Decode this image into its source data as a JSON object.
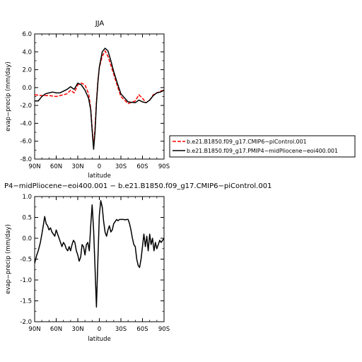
{
  "chart_data": [
    {
      "type": "line",
      "title": "JJA",
      "xlabel": "latitude",
      "ylabel": "evap−precip (mm/day)",
      "xlim": [
        -90,
        90
      ],
      "ylim": [
        -8,
        6
      ],
      "xticks": [
        {
          "v": -90,
          "label": "90N"
        },
        {
          "v": -60,
          "label": "60N"
        },
        {
          "v": -30,
          "label": "30N"
        },
        {
          "v": 0,
          "label": "0"
        },
        {
          "v": 30,
          "label": "30S"
        },
        {
          "v": 60,
          "label": "60S"
        },
        {
          "v": 90,
          "label": "90S"
        }
      ],
      "yticks": [
        {
          "v": 6,
          "label": "6.0"
        },
        {
          "v": 4,
          "label": "4.0"
        },
        {
          "v": 2,
          "label": "2.0"
        },
        {
          "v": 0,
          "label": "0.0"
        },
        {
          "v": -2,
          "label": "-2.0"
        },
        {
          "v": -4,
          "label": "-4.0"
        },
        {
          "v": -6,
          "label": "-6.0"
        },
        {
          "v": -8,
          "label": "-8.0"
        }
      ],
      "legend": "right",
      "series": [
        {
          "name": "b.e21.B1850.f09_g17.CMIP6−piControl.001",
          "color": "#ff0000",
          "dash": "dashed",
          "x": [
            -90,
            -80,
            -70,
            -60,
            -50,
            -45,
            -40,
            -35,
            -30,
            -25,
            -20,
            -15,
            -12,
            -10,
            -8,
            -6,
            -4,
            -2,
            0,
            4,
            8,
            12,
            16,
            20,
            25,
            30,
            40,
            50,
            55,
            60,
            65,
            70,
            75,
            80,
            85,
            90
          ],
          "y": [
            -0.8,
            -0.9,
            -0.9,
            -1.0,
            -0.8,
            -0.7,
            -0.3,
            -0.6,
            0.3,
            0.5,
            0.3,
            -0.7,
            -2.3,
            -4.5,
            -6.6,
            -4.5,
            -1.5,
            0.8,
            2.2,
            3.5,
            4.1,
            3.5,
            2.5,
            1.5,
            0.2,
            -1.0,
            -1.8,
            -1.5,
            -0.8,
            -1.2,
            -1.7,
            -1.4,
            -0.8,
            -0.6,
            -0.4,
            -0.3
          ]
        },
        {
          "name": "b.e21.B1850.f09_g17.PMIP4−midPliocene−eoi400.001",
          "color": "#000000",
          "dash": "solid",
          "x": [
            -90,
            -85,
            -80,
            -75,
            -70,
            -65,
            -60,
            -55,
            -50,
            -45,
            -40,
            -35,
            -30,
            -25,
            -20,
            -15,
            -12,
            -10,
            -8,
            -6,
            -4,
            -2,
            0,
            4,
            8,
            12,
            16,
            20,
            25,
            30,
            40,
            50,
            55,
            60,
            65,
            70,
            75,
            80,
            85,
            90
          ],
          "y": [
            -1.5,
            -1.5,
            -1.0,
            -0.7,
            -0.6,
            -0.5,
            -0.6,
            -0.6,
            -0.4,
            -0.2,
            0.1,
            -0.2,
            0.5,
            0.3,
            -0.3,
            -1.2,
            -2.5,
            -4.8,
            -6.9,
            -5.0,
            -1.8,
            0.6,
            2.3,
            4.0,
            4.4,
            4.1,
            3.0,
            1.8,
            0.5,
            -0.7,
            -1.6,
            -1.7,
            -1.4,
            -1.6,
            -1.7,
            -1.4,
            -0.9,
            -0.6,
            -0.5,
            -0.3
          ]
        }
      ]
    },
    {
      "type": "line",
      "title": "P4−midPliocene−eoi400.001 − b.e21.B1850.f09_g17.CMIP6−piControl.001",
      "xlabel": "latitude",
      "ylabel": "evap−precip (mm/day)",
      "xlim": [
        -90,
        90
      ],
      "ylim": [
        -2,
        1
      ],
      "xticks": [
        {
          "v": -90,
          "label": "90N"
        },
        {
          "v": -60,
          "label": "60N"
        },
        {
          "v": -30,
          "label": "30N"
        },
        {
          "v": 0,
          "label": "0"
        },
        {
          "v": 30,
          "label": "30S"
        },
        {
          "v": 60,
          "label": "60S"
        },
        {
          "v": 90,
          "label": "90S"
        }
      ],
      "yticks": [
        {
          "v": 1,
          "label": "1.0"
        },
        {
          "v": 0.5,
          "label": "0.5"
        },
        {
          "v": 0,
          "label": "0.0"
        },
        {
          "v": -0.5,
          "label": "-0.5"
        },
        {
          "v": -1,
          "label": "-1.0"
        },
        {
          "v": -1.5,
          "label": "-1.5"
        },
        {
          "v": -2,
          "label": "-2.0"
        }
      ],
      "series": [
        {
          "color": "#000000",
          "dash": "solid",
          "x": [
            -90,
            -87,
            -85,
            -82,
            -80,
            -78,
            -76,
            -74,
            -72,
            -70,
            -68,
            -66,
            -64,
            -62,
            -60,
            -58,
            -56,
            -54,
            -52,
            -50,
            -48,
            -46,
            -44,
            -42,
            -40,
            -38,
            -36,
            -34,
            -32,
            -30,
            -28,
            -26,
            -24,
            -22,
            -20,
            -18,
            -16,
            -14,
            -12,
            -10,
            -8,
            -6,
            -4,
            -2,
            0,
            2,
            4,
            6,
            8,
            10,
            12,
            14,
            16,
            18,
            20,
            22,
            24,
            26,
            28,
            30,
            32,
            34,
            36,
            38,
            40,
            42,
            44,
            46,
            48,
            50,
            52,
            54,
            56,
            58,
            60,
            62,
            64,
            66,
            68,
            70,
            72,
            74,
            76,
            78,
            80,
            82,
            84,
            86,
            88,
            90
          ],
          "y": [
            -0.6,
            -0.4,
            -0.3,
            -0.1,
            0.1,
            0.3,
            0.52,
            0.35,
            0.3,
            0.2,
            0.25,
            0.15,
            0.1,
            0.05,
            0.2,
            0.1,
            0.0,
            -0.1,
            -0.2,
            -0.1,
            -0.15,
            -0.25,
            -0.3,
            -0.2,
            -0.3,
            -0.15,
            -0.05,
            -0.1,
            -0.3,
            -0.4,
            -0.55,
            -0.45,
            -0.15,
            -0.2,
            -0.4,
            -0.15,
            -0.1,
            -0.3,
            0.3,
            0.8,
            0.2,
            -0.7,
            -1.65,
            -0.5,
            0.55,
            0.9,
            0.75,
            0.4,
            0.15,
            0.05,
            0.2,
            0.3,
            0.15,
            0.2,
            0.35,
            0.4,
            0.45,
            0.42,
            0.45,
            0.45,
            0.45,
            0.45,
            0.44,
            0.45,
            0.45,
            0.35,
            0.2,
            0.0,
            -0.15,
            -0.2,
            -0.5,
            -0.65,
            -0.7,
            -0.5,
            -0.2,
            0.1,
            -0.2,
            0.05,
            -0.3,
            0.1,
            -0.15,
            0.0,
            -0.3,
            -0.1,
            -0.25,
            -0.15,
            -0.05,
            -0.1,
            -0.05,
            0.0
          ]
        }
      ]
    }
  ]
}
